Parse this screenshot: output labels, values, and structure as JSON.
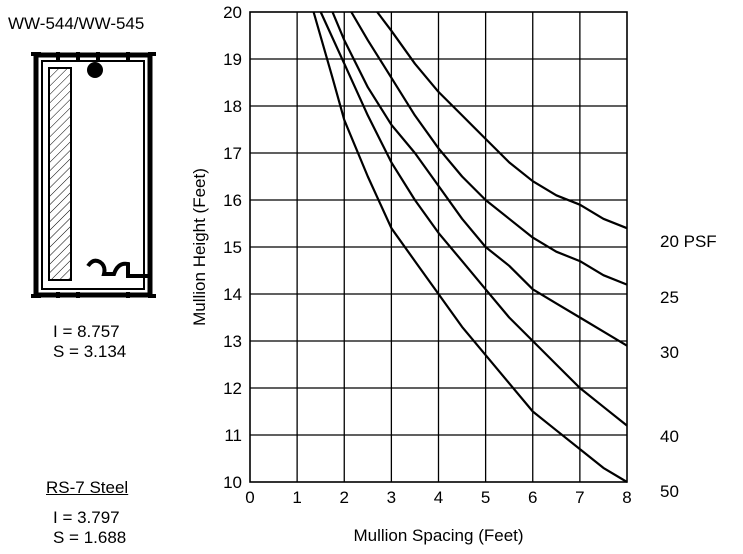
{
  "profile": {
    "title": "WW-544/WW-545",
    "moment_of_inertia": "I = 8.757",
    "section_modulus": "S = 3.134"
  },
  "reinforcement": {
    "title": "RS-7 Steel",
    "moment_of_inertia": "I = 3.797",
    "section_modulus": "S = 1.688"
  },
  "chart_data": {
    "type": "line",
    "xlabel": "Mullion Spacing (Feet)",
    "ylabel": "Mullion Height (Feet)",
    "xlim": [
      0,
      8
    ],
    "ylim": [
      10,
      20
    ],
    "x_ticks": [
      "0",
      "1",
      "2",
      "3",
      "4",
      "5",
      "6",
      "7",
      "8"
    ],
    "y_ticks": [
      "10",
      "11",
      "12",
      "13",
      "14",
      "15",
      "16",
      "17",
      "18",
      "19",
      "20"
    ],
    "grid": true,
    "series": [
      {
        "name": "20 PSF",
        "x": [
          2.7,
          3,
          3.5,
          4,
          4.5,
          5,
          5.5,
          6,
          6.5,
          7,
          7.5,
          8
        ],
        "y": [
          20,
          19.6,
          18.9,
          18.3,
          17.8,
          17.3,
          16.8,
          16.4,
          16.1,
          15.9,
          15.6,
          15.4
        ]
      },
      {
        "name": "25",
        "x": [
          2.15,
          2.5,
          3,
          3.5,
          4,
          4.5,
          5,
          5.5,
          6,
          6.5,
          7,
          7.5,
          8
        ],
        "y": [
          20,
          19.4,
          18.6,
          17.8,
          17.1,
          16.5,
          16.0,
          15.6,
          15.2,
          14.9,
          14.7,
          14.4,
          14.2
        ]
      },
      {
        "name": "30",
        "x": [
          1.75,
          2,
          2.5,
          3,
          3.5,
          4,
          4.5,
          5,
          5.5,
          6,
          6.5,
          7,
          7.5,
          8
        ],
        "y": [
          20,
          19.4,
          18.4,
          17.6,
          17.0,
          16.3,
          15.6,
          15.0,
          14.6,
          14.1,
          13.8,
          13.5,
          13.2,
          12.9
        ]
      },
      {
        "name": "40",
        "x": [
          1.5,
          2,
          2.5,
          3,
          3.5,
          4,
          4.5,
          5,
          5.5,
          6,
          6.5,
          7,
          7.5,
          8
        ],
        "y": [
          20,
          18.9,
          17.8,
          16.8,
          16.0,
          15.3,
          14.7,
          14.1,
          13.5,
          13.0,
          12.5,
          12.0,
          11.6,
          11.2
        ]
      },
      {
        "name": "50",
        "x": [
          1.35,
          1.75,
          2,
          2.5,
          3,
          3.5,
          4,
          4.5,
          5,
          5.5,
          6,
          6.5,
          7,
          7.5,
          8
        ],
        "y": [
          20,
          18.6,
          17.7,
          16.5,
          15.4,
          14.7,
          14.0,
          13.3,
          12.7,
          12.1,
          11.5,
          11.1,
          10.7,
          10.3,
          10.0
        ]
      }
    ]
  }
}
